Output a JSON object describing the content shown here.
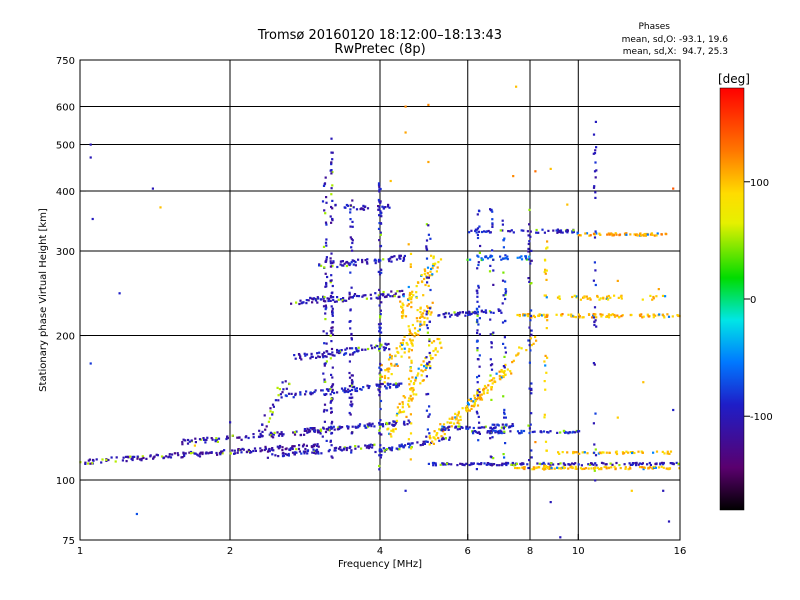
{
  "chart_data": {
    "type": "scatter",
    "title": "Tromsø 20160120 18:12:00–18:13:43",
    "subtitle": "RwPretec (8p)",
    "xlabel": "Frequency [MHz]",
    "ylabel": "Stationary phase Virtual Height [km]",
    "x_scale": "log",
    "y_scale": "log",
    "xlim": [
      1,
      16
    ],
    "ylim": [
      75,
      750
    ],
    "x_ticks": [
      1,
      2,
      4,
      6,
      8,
      10,
      16
    ],
    "x_tick_labels": [
      "1",
      "2",
      "4",
      "6",
      "8",
      "10",
      "16"
    ],
    "y_ticks": [
      75,
      100,
      200,
      300,
      400,
      500,
      600,
      750
    ],
    "y_tick_labels": [
      "75",
      "100",
      "200",
      "300",
      "400",
      "500",
      "600",
      "750"
    ],
    "grid": true,
    "stats": {
      "header": "Phases",
      "line1": "mean, sd,O: -93.1, 19.6",
      "line2": "mean, sd,X:  94.7, 25.3"
    },
    "colorbar": {
      "label": "[deg]",
      "range": [
        -180,
        180
      ],
      "ticks": [
        100,
        0,
        -100
      ],
      "tick_labels": [
        "100",
        "0",
        "-100"
      ],
      "colormap": "rainbow (black → purple → blue → cyan → green → yellow → orange → red)"
    },
    "traces": [
      {
        "f0": 1.0,
        "f1": 3.0,
        "h0": 109,
        "h1": 118,
        "phase": -110,
        "n": 170,
        "jit": 0.012
      },
      {
        "f0": 1.6,
        "f1": 3.2,
        "h0": 120,
        "h1": 127,
        "phase": -105,
        "n": 90,
        "jit": 0.012
      },
      {
        "f0": 2.4,
        "f1": 3.9,
        "h0": 112,
        "h1": 118,
        "phase": -100,
        "n": 70,
        "jit": 0.01
      },
      {
        "f0": 2.8,
        "f1": 4.6,
        "h0": 127,
        "h1": 132,
        "phase": -100,
        "n": 80,
        "jit": 0.01
      },
      {
        "f0": 2.6,
        "f1": 4.4,
        "h0": 150,
        "h1": 158,
        "phase": -95,
        "n": 80,
        "jit": 0.012
      },
      {
        "f0": 2.7,
        "f1": 4.2,
        "h0": 180,
        "h1": 190,
        "phase": -100,
        "n": 70,
        "jit": 0.015
      },
      {
        "f0": 2.6,
        "f1": 4.5,
        "h0": 235,
        "h1": 245,
        "phase": -105,
        "n": 90,
        "jit": 0.015
      },
      {
        "f0": 3.0,
        "f1": 4.5,
        "h0": 280,
        "h1": 290,
        "phase": -100,
        "n": 60,
        "jit": 0.015
      },
      {
        "f0": 3.2,
        "f1": 4.2,
        "h0": 370,
        "h1": 370,
        "phase": -105,
        "n": 30,
        "jit": 0.012
      },
      {
        "f0": 3.9,
        "f1": 5.5,
        "h0": 115,
        "h1": 122,
        "phase": -95,
        "n": 60,
        "jit": 0.01
      },
      {
        "f0": 4.2,
        "f1": 5.3,
        "h0": 125,
        "h1": 200,
        "phase": 95,
        "n": 80,
        "jit": 0.025
      },
      {
        "f0": 4.0,
        "f1": 5.0,
        "h0": 160,
        "h1": 230,
        "phase": 100,
        "n": 90,
        "jit": 0.03
      },
      {
        "f0": 4.4,
        "f1": 5.2,
        "h0": 220,
        "h1": 290,
        "phase": 95,
        "n": 60,
        "jit": 0.03
      },
      {
        "f0": 5.0,
        "f1": 7.2,
        "h0": 120,
        "h1": 170,
        "phase": 100,
        "n": 90,
        "jit": 0.02
      },
      {
        "f0": 5.6,
        "f1": 8.2,
        "h0": 130,
        "h1": 200,
        "phase": 95,
        "n": 50,
        "jit": 0.025
      },
      {
        "f0": 5.3,
        "f1": 7.5,
        "h0": 128,
        "h1": 130,
        "phase": -95,
        "n": 50,
        "jit": 0.008
      },
      {
        "f0": 5.0,
        "f1": 16.0,
        "h0": 108,
        "h1": 108,
        "phase": -100,
        "n": 150,
        "jit": 0.006
      },
      {
        "f0": 7.4,
        "f1": 16.0,
        "h0": 106,
        "h1": 106,
        "phase": 100,
        "n": 100,
        "jit": 0.006
      },
      {
        "f0": 9.0,
        "f1": 15.5,
        "h0": 114,
        "h1": 114,
        "phase": 100,
        "n": 50,
        "jit": 0.006
      },
      {
        "f0": 6.0,
        "f1": 10.0,
        "h0": 126,
        "h1": 126,
        "phase": -90,
        "n": 60,
        "jit": 0.006
      },
      {
        "f0": 5.2,
        "f1": 7.0,
        "h0": 220,
        "h1": 225,
        "phase": -100,
        "n": 50,
        "jit": 0.01
      },
      {
        "f0": 7.6,
        "f1": 16.0,
        "h0": 220,
        "h1": 220,
        "phase": 105,
        "n": 100,
        "jit": 0.008
      },
      {
        "f0": 9.0,
        "f1": 15.0,
        "h0": 240,
        "h1": 240,
        "phase": 95,
        "n": 40,
        "jit": 0.01
      },
      {
        "f0": 6.0,
        "f1": 10.0,
        "h0": 330,
        "h1": 330,
        "phase": -95,
        "n": 50,
        "jit": 0.008
      },
      {
        "f0": 10.0,
        "f1": 15.5,
        "h0": 325,
        "h1": 325,
        "phase": 110,
        "n": 60,
        "jit": 0.006
      },
      {
        "f0": 6.0,
        "f1": 8.0,
        "h0": 290,
        "h1": 290,
        "phase": -60,
        "n": 30,
        "jit": 0.01
      },
      {
        "f0": 3.2,
        "f1": 3.2,
        "h0": 110,
        "h1": 520,
        "phase": -105,
        "n": 90,
        "jit": 0.006
      },
      {
        "f0": 3.1,
        "f1": 3.1,
        "h0": 120,
        "h1": 430,
        "phase": -100,
        "n": 60,
        "jit": 0.01
      },
      {
        "f0": 3.5,
        "f1": 3.5,
        "h0": 110,
        "h1": 380,
        "phase": -100,
        "n": 60,
        "jit": 0.008
      },
      {
        "f0": 4.0,
        "f1": 4.0,
        "h0": 105,
        "h1": 430,
        "phase": -95,
        "n": 80,
        "jit": 0.006
      },
      {
        "f0": 4.6,
        "f1": 4.6,
        "h0": 110,
        "h1": 330,
        "phase": 95,
        "n": 40,
        "jit": 0.008
      },
      {
        "f0": 5.0,
        "f1": 5.0,
        "h0": 120,
        "h1": 350,
        "phase": -95,
        "n": 40,
        "jit": 0.01
      },
      {
        "f0": 6.3,
        "f1": 6.3,
        "h0": 105,
        "h1": 380,
        "phase": -90,
        "n": 60,
        "jit": 0.008
      },
      {
        "f0": 6.7,
        "f1": 6.7,
        "h0": 110,
        "h1": 370,
        "phase": -95,
        "n": 40,
        "jit": 0.008
      },
      {
        "f0": 7.1,
        "f1": 7.1,
        "h0": 110,
        "h1": 360,
        "phase": -85,
        "n": 40,
        "jit": 0.008
      },
      {
        "f0": 8.0,
        "f1": 8.0,
        "h0": 105,
        "h1": 380,
        "phase": -95,
        "n": 40,
        "jit": 0.008
      },
      {
        "f0": 8.6,
        "f1": 8.6,
        "h0": 105,
        "h1": 330,
        "phase": 95,
        "n": 30,
        "jit": 0.008
      },
      {
        "f0": 10.8,
        "f1": 10.8,
        "h0": 95,
        "h1": 580,
        "phase": -95,
        "n": 35,
        "jit": 0.006
      },
      {
        "f0": 2.3,
        "f1": 2.6,
        "h0": 125,
        "h1": 160,
        "phase": -110,
        "n": 30,
        "jit": 0.02
      }
    ],
    "scattered_points": [
      [
        1.05,
        470,
        -100
      ],
      [
        1.06,
        350,
        -95
      ],
      [
        1.2,
        245,
        -90
      ],
      [
        1.05,
        175,
        -80
      ],
      [
        1.4,
        405,
        -100
      ],
      [
        1.45,
        370,
        100
      ],
      [
        1.3,
        85,
        -70
      ],
      [
        1.05,
        500,
        -100
      ],
      [
        4.5,
        600,
        120
      ],
      [
        4.5,
        530,
        110
      ],
      [
        5.0,
        605,
        120
      ],
      [
        7.5,
        660,
        100
      ],
      [
        5.0,
        460,
        110
      ],
      [
        4.2,
        420,
        100
      ],
      [
        10.8,
        480,
        -95
      ],
      [
        15.5,
        405,
        140
      ],
      [
        4.5,
        95,
        -90
      ],
      [
        8.8,
        90,
        -100
      ],
      [
        12.8,
        95,
        95
      ],
      [
        14.8,
        95,
        -100
      ],
      [
        15.2,
        82,
        -100
      ],
      [
        9.2,
        76,
        -100
      ],
      [
        7.4,
        430,
        120
      ],
      [
        8.2,
        440,
        130
      ],
      [
        8.8,
        445,
        100
      ],
      [
        10.8,
        440,
        -100
      ],
      [
        9.5,
        375,
        100
      ],
      [
        12.0,
        260,
        110
      ],
      [
        1.9,
        122,
        -90
      ],
      [
        1.7,
        118,
        95
      ],
      [
        2.0,
        132,
        -100
      ],
      [
        14.5,
        250,
        110
      ],
      [
        13.5,
        160,
        100
      ],
      [
        15.5,
        140,
        -90
      ],
      [
        12.0,
        135,
        95
      ],
      [
        8.2,
        120,
        120
      ]
    ]
  }
}
